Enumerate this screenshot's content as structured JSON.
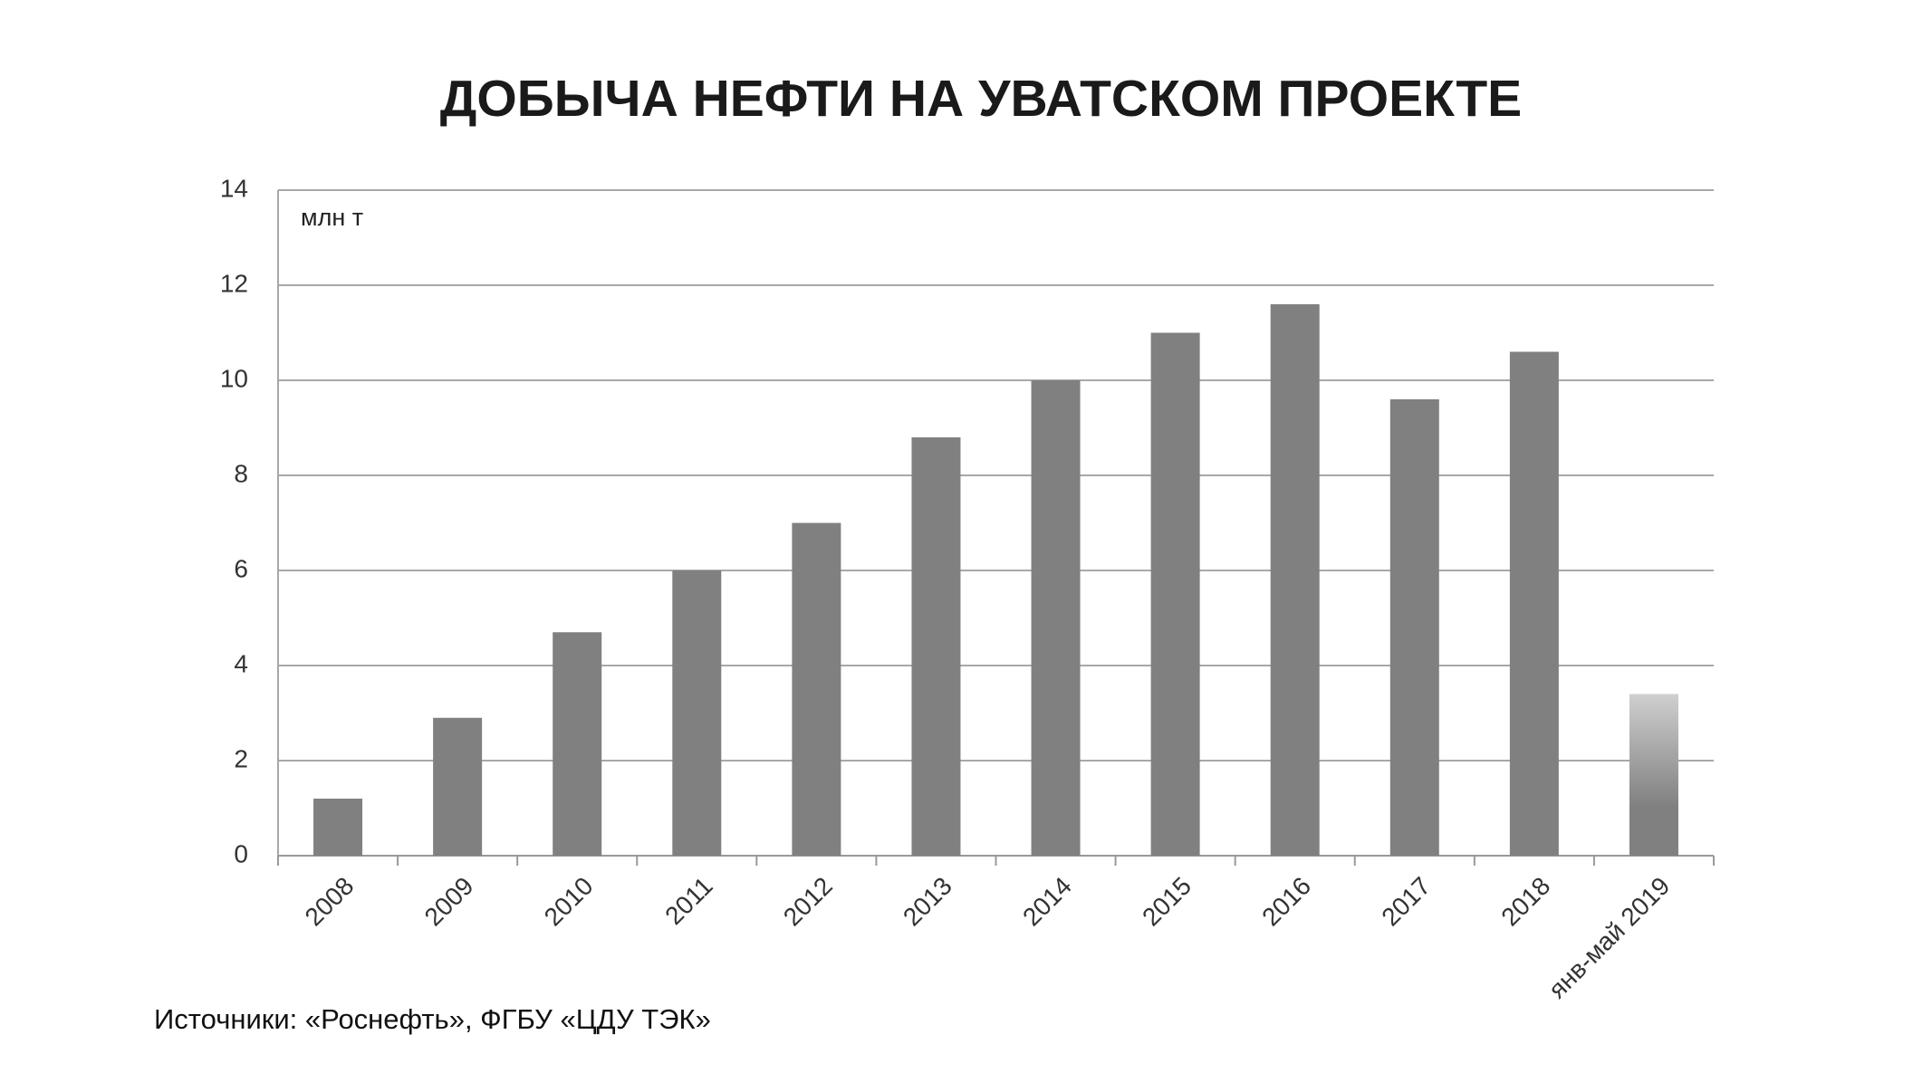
{
  "chart_data": {
    "type": "bar",
    "title": "ДОБЫЧА НЕФТИ НА УВАТСКОМ ПРОЕКТЕ",
    "unit_label": "млн т",
    "source": "Источники: «Роснефть», ФГБУ «ЦДУ ТЭК»",
    "categories": [
      "2008",
      "2009",
      "2010",
      "2011",
      "2012",
      "2013",
      "2014",
      "2015",
      "2016",
      "2017",
      "2018",
      "янв-май 2019"
    ],
    "values": [
      1.2,
      2.9,
      4.7,
      6.0,
      7.0,
      8.8,
      10.0,
      11.0,
      11.6,
      9.6,
      10.6,
      3.4
    ],
    "bar_colors": [
      "#808080",
      "#808080",
      "#808080",
      "#808080",
      "#808080",
      "#808080",
      "#808080",
      "#808080",
      "#808080",
      "#808080",
      "#808080",
      [
        "#cfcfcf",
        "#808080"
      ]
    ],
    "ylim": [
      0,
      14
    ],
    "yticks": [
      0,
      2,
      4,
      6,
      8,
      10,
      12,
      14
    ],
    "grid": true
  }
}
